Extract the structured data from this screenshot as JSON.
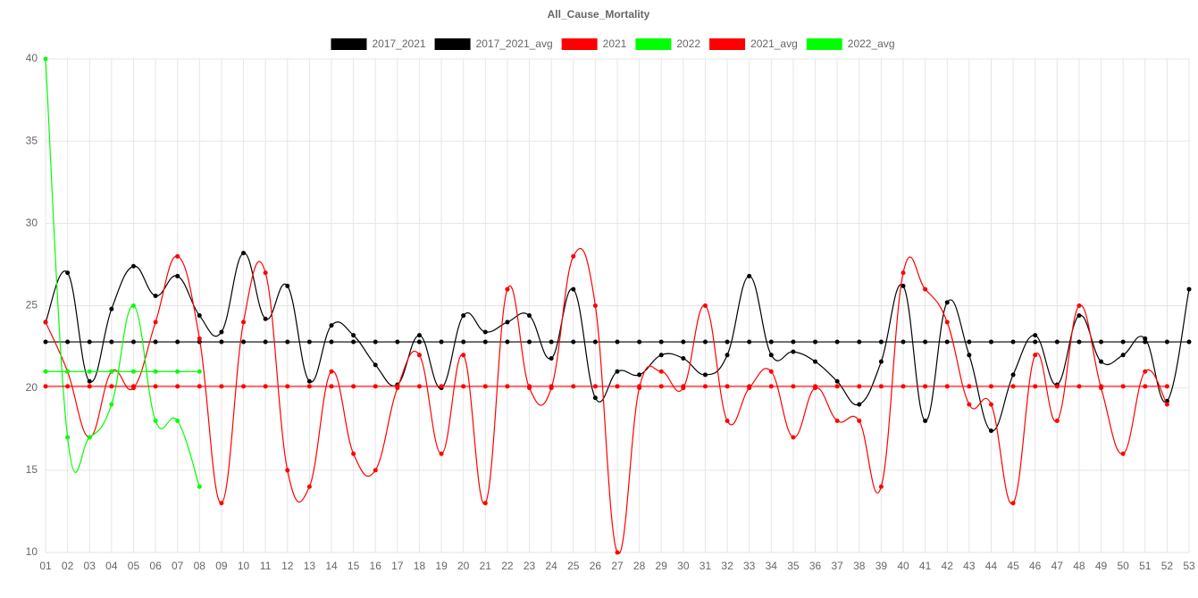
{
  "chart_data": {
    "type": "line",
    "title": "All_Cause_Mortality",
    "categories": [
      "01",
      "02",
      "03",
      "04",
      "05",
      "06",
      "07",
      "08",
      "09",
      "10",
      "11",
      "12",
      "13",
      "14",
      "15",
      "16",
      "17",
      "18",
      "19",
      "20",
      "21",
      "22",
      "23",
      "24",
      "25",
      "26",
      "27",
      "28",
      "29",
      "30",
      "31",
      "32",
      "33",
      "34",
      "35",
      "36",
      "37",
      "38",
      "39",
      "40",
      "41",
      "42",
      "43",
      "44",
      "45",
      "46",
      "47",
      "48",
      "49",
      "50",
      "51",
      "52",
      "53"
    ],
    "ylim": [
      10,
      40
    ],
    "yticks": [
      10,
      15,
      20,
      25,
      30,
      35,
      40
    ],
    "grid": true,
    "legend": "top",
    "series": [
      {
        "name": "2017_2021",
        "color": "#000000",
        "values": [
          24.0,
          27.0,
          20.4,
          24.8,
          27.4,
          25.6,
          26.8,
          24.4,
          23.4,
          28.2,
          24.2,
          26.2,
          20.4,
          23.8,
          23.2,
          21.4,
          20.2,
          23.2,
          20.0,
          24.4,
          23.4,
          24.0,
          24.4,
          21.8,
          26.0,
          19.4,
          21.0,
          20.8,
          22.0,
          21.8,
          20.8,
          22.0,
          26.8,
          22.0,
          22.2,
          21.6,
          20.4,
          19.0,
          21.6,
          26.2,
          18.0,
          25.2,
          22.0,
          17.4,
          20.8,
          23.2,
          20.2,
          24.4,
          21.6,
          22.0,
          23.0,
          19.2,
          26.0
        ]
      },
      {
        "name": "2017_2021_avg",
        "color": "#000000",
        "values": [
          22.8,
          22.8,
          22.8,
          22.8,
          22.8,
          22.8,
          22.8,
          22.8,
          22.8,
          22.8,
          22.8,
          22.8,
          22.8,
          22.8,
          22.8,
          22.8,
          22.8,
          22.8,
          22.8,
          22.8,
          22.8,
          22.8,
          22.8,
          22.8,
          22.8,
          22.8,
          22.8,
          22.8,
          22.8,
          22.8,
          22.8,
          22.8,
          22.8,
          22.8,
          22.8,
          22.8,
          22.8,
          22.8,
          22.8,
          22.8,
          22.8,
          22.8,
          22.8,
          22.8,
          22.8,
          22.8,
          22.8,
          22.8,
          22.8,
          22.8,
          22.8,
          22.8,
          22.8
        ]
      },
      {
        "name": "2021",
        "color": "#ff0000",
        "values": [
          24,
          21,
          17,
          21,
          20,
          24,
          28,
          23,
          13,
          24,
          27,
          15,
          14,
          21,
          16,
          15,
          20,
          22,
          16,
          22,
          13,
          26,
          20,
          20,
          28,
          25,
          10,
          20,
          21,
          20,
          25,
          18,
          20,
          21,
          17,
          20,
          18,
          18,
          14,
          27,
          26,
          24,
          19,
          19,
          13,
          22,
          18,
          25,
          20,
          16,
          21,
          19,
          null
        ]
      },
      {
        "name": "2022",
        "color": "#00ff00",
        "values": [
          40,
          17,
          17,
          19,
          25,
          18,
          18,
          14,
          null,
          null,
          null,
          null,
          null,
          null,
          null,
          null,
          null,
          null,
          null,
          null,
          null,
          null,
          null,
          null,
          null,
          null,
          null,
          null,
          null,
          null,
          null,
          null,
          null,
          null,
          null,
          null,
          null,
          null,
          null,
          null,
          null,
          null,
          null,
          null,
          null,
          null,
          null,
          null,
          null,
          null,
          null,
          null,
          null
        ]
      },
      {
        "name": "2021_avg",
        "color": "#ff0000",
        "values": [
          20.1,
          20.1,
          20.1,
          20.1,
          20.1,
          20.1,
          20.1,
          20.1,
          20.1,
          20.1,
          20.1,
          20.1,
          20.1,
          20.1,
          20.1,
          20.1,
          20.1,
          20.1,
          20.1,
          20.1,
          20.1,
          20.1,
          20.1,
          20.1,
          20.1,
          20.1,
          20.1,
          20.1,
          20.1,
          20.1,
          20.1,
          20.1,
          20.1,
          20.1,
          20.1,
          20.1,
          20.1,
          20.1,
          20.1,
          20.1,
          20.1,
          20.1,
          20.1,
          20.1,
          20.1,
          20.1,
          20.1,
          20.1,
          20.1,
          20.1,
          20.1,
          20.1,
          null
        ]
      },
      {
        "name": "2022_avg",
        "color": "#00ff00",
        "values": [
          21,
          21,
          21,
          21,
          21,
          21,
          21,
          21,
          null,
          null,
          null,
          null,
          null,
          null,
          null,
          null,
          null,
          null,
          null,
          null,
          null,
          null,
          null,
          null,
          null,
          null,
          null,
          null,
          null,
          null,
          null,
          null,
          null,
          null,
          null,
          null,
          null,
          null,
          null,
          null,
          null,
          null,
          null,
          null,
          null,
          null,
          null,
          null,
          null,
          null,
          null,
          null,
          null
        ]
      }
    ]
  }
}
